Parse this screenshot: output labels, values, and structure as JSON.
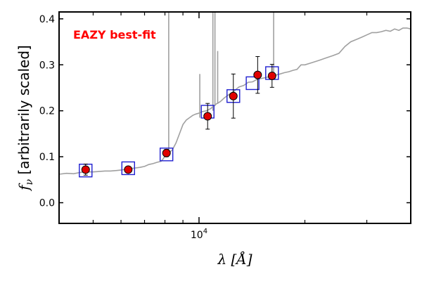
{
  "chart_data": {
    "type": "scatter",
    "xscale": "log",
    "xlim": [
      4000,
      40000
    ],
    "ylim": [
      -0.045,
      0.415
    ],
    "xlabel": "λ [Å]",
    "ylabel": "f_ν [arbitrarily scaled]",
    "ylabel_symbol": "f",
    "ylabel_sub": "ν",
    "ylabel_rest": " [arbitrarily scaled]",
    "xticks": [
      {
        "value": 10000,
        "base": "10",
        "exp": "4"
      }
    ],
    "yticks": [
      0.0,
      0.1,
      0.2,
      0.3,
      0.4
    ],
    "ytick_labels": [
      "0.0",
      "0.1",
      "0.2",
      "0.3",
      "0.4"
    ],
    "annotation": {
      "text": "EAZY best-fit",
      "color": "#ff0000"
    },
    "colors": {
      "sed": "#a0a0a0",
      "model_box": "#1f1fd0",
      "point_fill": "#e00000"
    },
    "observed": {
      "x": [
        4760,
        6290,
        8080,
        10580,
        12520,
        14680,
        16130
      ],
      "y": [
        0.072,
        0.072,
        0.108,
        0.188,
        0.232,
        0.278,
        0.276
      ],
      "yerr": [
        0.012,
        0.006,
        0.008,
        0.028,
        0.048,
        0.04,
        0.025
      ]
    },
    "model_photometry": {
      "x": [
        4760,
        6290,
        8080,
        10580,
        12520,
        14200,
        16130
      ],
      "y": [
        0.07,
        0.075,
        0.105,
        0.198,
        0.232,
        0.26,
        0.282
      ]
    },
    "sed": {
      "x": [
        4000,
        4200,
        4400,
        4600,
        4800,
        5000,
        5200,
        5400,
        5600,
        5800,
        6000,
        6200,
        6500,
        6800,
        7000,
        7200,
        7400,
        7600,
        7800,
        7900,
        8050,
        8200,
        8400,
        8600,
        8800,
        9000,
        9200,
        9400,
        9600,
        9800,
        10000,
        10200,
        10500,
        10800,
        11000,
        11200,
        11500,
        11800,
        12000,
        12300,
        12600,
        12800,
        13000,
        13400,
        13800,
        14200,
        14600,
        15000,
        15400,
        15800,
        16200,
        16600,
        17000,
        17500,
        18000,
        18500,
        19000,
        19500,
        20000,
        21000,
        22000,
        23000,
        24000,
        25000,
        26000,
        27000,
        28000,
        29000,
        30000,
        31000,
        32000,
        33000,
        34000,
        35000,
        36000,
        37000,
        38000,
        39000,
        40000
      ],
      "y": [
        0.062,
        0.064,
        0.063,
        0.066,
        0.067,
        0.067,
        0.068,
        0.069,
        0.069,
        0.07,
        0.071,
        0.073,
        0.075,
        0.077,
        0.079,
        0.083,
        0.085,
        0.088,
        0.09,
        0.095,
        0.105,
        0.108,
        0.115,
        0.13,
        0.15,
        0.17,
        0.18,
        0.185,
        0.19,
        0.193,
        0.195,
        0.198,
        0.2,
        0.205,
        0.21,
        0.215,
        0.22,
        0.228,
        0.232,
        0.238,
        0.243,
        0.248,
        0.252,
        0.255,
        0.262,
        0.263,
        0.268,
        0.27,
        0.272,
        0.274,
        0.276,
        0.278,
        0.28,
        0.283,
        0.285,
        0.288,
        0.29,
        0.3,
        0.3,
        0.305,
        0.31,
        0.315,
        0.32,
        0.325,
        0.34,
        0.35,
        0.355,
        0.36,
        0.365,
        0.37,
        0.37,
        0.372,
        0.375,
        0.373,
        0.378,
        0.375,
        0.38,
        0.38,
        0.378
      ]
    },
    "emission_lines": [
      {
        "x": 8200,
        "y0": 0.11,
        "y1": 0.415
      },
      {
        "x": 10050,
        "y0": 0.185,
        "y1": 0.28
      },
      {
        "x": 10950,
        "y0": 0.2,
        "y1": 0.415
      },
      {
        "x": 11100,
        "y0": 0.21,
        "y1": 0.415
      },
      {
        "x": 11300,
        "y0": 0.215,
        "y1": 0.33
      },
      {
        "x": 16300,
        "y0": 0.27,
        "y1": 0.415
      }
    ]
  }
}
